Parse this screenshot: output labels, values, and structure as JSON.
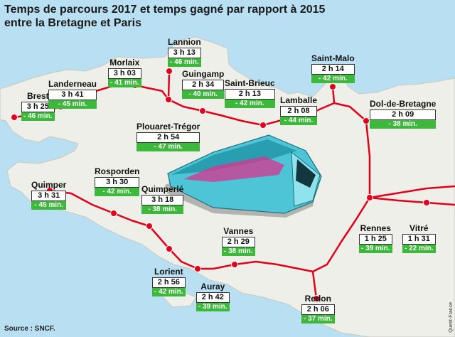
{
  "title_line1": "Temps de parcours 2017 et temps gagné par rapport à 2015",
  "title_line2": "entre la Bretagne et Paris",
  "source": "Source : SNCF.",
  "credit": "Quest-France",
  "colors": {
    "sea": "#b9dff2",
    "land": "#efefe9",
    "rail": "#e3001b",
    "gain": "#3cb93b"
  },
  "cities": {
    "brest": {
      "name": "Brest",
      "time": "3 h 25",
      "gain": "- 46 min."
    },
    "landerneau": {
      "name": "Landerneau",
      "time": "3 h 41",
      "gain": "- 45 min."
    },
    "morlaix": {
      "name": "Morlaix",
      "time": "3 h 03",
      "gain": "- 41 min."
    },
    "lannion": {
      "name": "Lannion",
      "time": "3 h 13",
      "gain": "- 46 min."
    },
    "guingamp": {
      "name": "Guingamp",
      "time": "2 h 34",
      "gain": "- 40 min."
    },
    "saint_brieuc": {
      "name": "Saint-Brieuc",
      "time": "2 h 13",
      "gain": "- 42 min."
    },
    "lamballe": {
      "name": "Lamballe",
      "time": "2 h 08",
      "gain": "- 44 min."
    },
    "saint_malo": {
      "name": "Saint-Malo",
      "time": "2 h 14",
      "gain": "- 42 min."
    },
    "dol": {
      "name": "Dol-de-Bretagne",
      "time": "2 h 09",
      "gain": "- 38 min."
    },
    "plouaret": {
      "name": "Plouaret-Trégor",
      "time": "2 h 54",
      "gain": "- 47 min."
    },
    "quimper": {
      "name": "Quimper",
      "time": "3 h 31",
      "gain": "- 45 min."
    },
    "rosporden": {
      "name": "Rosporden",
      "time": "3 h 30",
      "gain": "- 42 min."
    },
    "quimperle": {
      "name": "Quimperlé",
      "time": "3 h 18",
      "gain": "- 38 min."
    },
    "lorient": {
      "name": "Lorient",
      "time": "2 h 56",
      "gain": "- 42 min."
    },
    "auray": {
      "name": "Auray",
      "time": "2 h 42",
      "gain": "- 39 min."
    },
    "vannes": {
      "name": "Vannes",
      "time": "2 h 29",
      "gain": "- 38 min."
    },
    "redon": {
      "name": "Redon",
      "time": "2 h 06",
      "gain": "- 37 min."
    },
    "rennes": {
      "name": "Rennes",
      "time": "1 h 25",
      "gain": "- 39 min."
    },
    "vitre": {
      "name": "Vitré",
      "time": "1 h 31",
      "gain": "- 22 min."
    }
  }
}
